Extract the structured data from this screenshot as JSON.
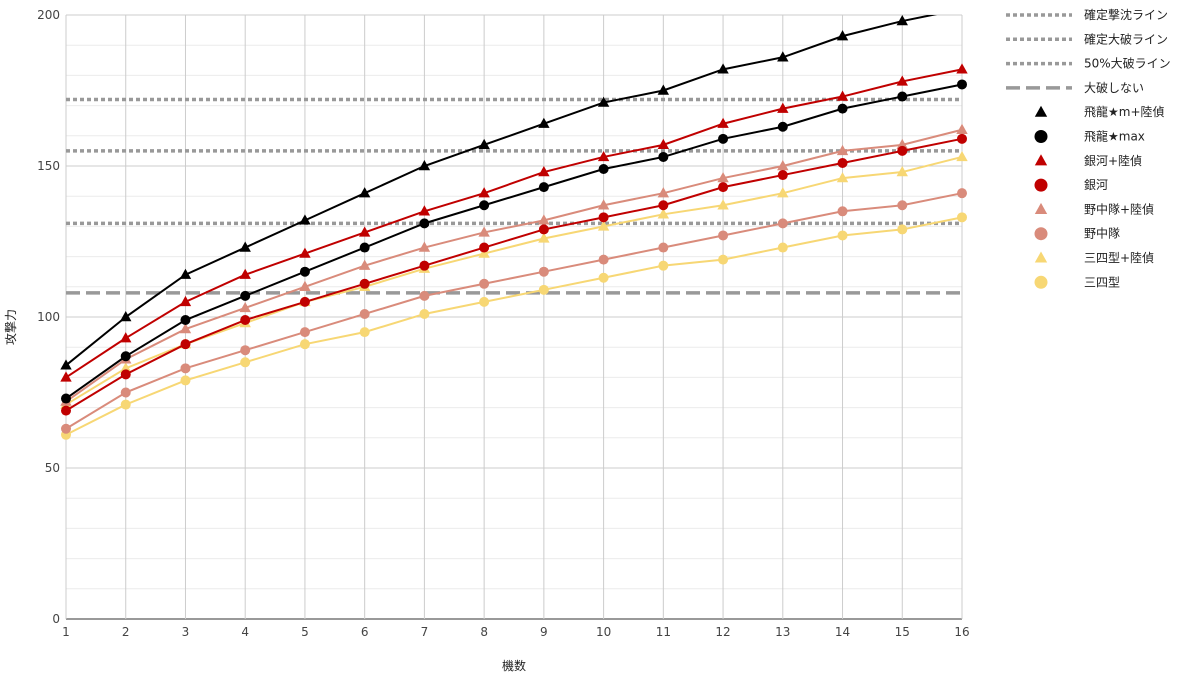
{
  "chart_data": {
    "type": "line",
    "title": "",
    "xlabel": "機数",
    "ylabel": "攻撃力",
    "xlim": [
      1,
      16
    ],
    "ylim": [
      0,
      200
    ],
    "x_ticks": [
      1,
      2,
      3,
      4,
      5,
      6,
      7,
      8,
      9,
      10,
      11,
      12,
      13,
      14,
      15,
      16
    ],
    "y_ticks": [
      0,
      50,
      100,
      150,
      200
    ],
    "grid": true,
    "legend_position": "right",
    "x": [
      1,
      2,
      3,
      4,
      5,
      6,
      7,
      8,
      9,
      10,
      11,
      12,
      13,
      14,
      15,
      16
    ],
    "reference_lines": [
      {
        "name": "確定撃沈ライン",
        "y": 172,
        "style": "dotted",
        "color": "#999999"
      },
      {
        "name": "確定大破ライン",
        "y": 155,
        "style": "dotted",
        "color": "#999999"
      },
      {
        "name": "50%大破ライン",
        "y": 131,
        "style": "dotted",
        "color": "#999999"
      },
      {
        "name": "大破しない",
        "y": 108,
        "style": "dashed",
        "color": "#999999"
      }
    ],
    "series": [
      {
        "name": "飛龍★m+陸偵",
        "marker": "triangle",
        "color": "#000000",
        "values": [
          84,
          100,
          114,
          123,
          132,
          141,
          150,
          157,
          164,
          171,
          175,
          182,
          186,
          193,
          198,
          202
        ]
      },
      {
        "name": "飛龍★max",
        "marker": "circle",
        "color": "#000000",
        "values": [
          73,
          87,
          99,
          107,
          115,
          123,
          131,
          137,
          143,
          149,
          153,
          159,
          163,
          169,
          173,
          177
        ]
      },
      {
        "name": "銀河+陸偵",
        "marker": "triangle",
        "color": "#c00000",
        "values": [
          80,
          93,
          105,
          114,
          121,
          128,
          135,
          141,
          148,
          153,
          157,
          164,
          169,
          173,
          178,
          182
        ]
      },
      {
        "name": "銀河",
        "marker": "circle",
        "color": "#c00000",
        "values": [
          69,
          81,
          91,
          99,
          105,
          111,
          117,
          123,
          129,
          133,
          137,
          143,
          147,
          151,
          155,
          159
        ]
      },
      {
        "name": "野中隊+陸偵",
        "marker": "triangle",
        "color": "#d98b7b",
        "values": [
          72,
          86,
          96,
          103,
          110,
          117,
          123,
          128,
          132,
          137,
          141,
          146,
          150,
          155,
          157,
          162
        ]
      },
      {
        "name": "野中隊",
        "marker": "circle",
        "color": "#d98b7b",
        "values": [
          63,
          75,
          83,
          89,
          95,
          101,
          107,
          111,
          115,
          119,
          123,
          127,
          131,
          135,
          137,
          141
        ]
      },
      {
        "name": "三四型+陸偵",
        "marker": "triangle",
        "color": "#f7d774",
        "values": [
          71,
          83,
          91,
          98,
          105,
          110,
          116,
          121,
          126,
          130,
          134,
          137,
          141,
          146,
          148,
          153
        ]
      },
      {
        "name": "三四型",
        "marker": "circle",
        "color": "#f7d774",
        "values": [
          61,
          71,
          79,
          85,
          91,
          95,
          101,
          105,
          109,
          113,
          117,
          119,
          123,
          127,
          129,
          133
        ]
      }
    ]
  }
}
